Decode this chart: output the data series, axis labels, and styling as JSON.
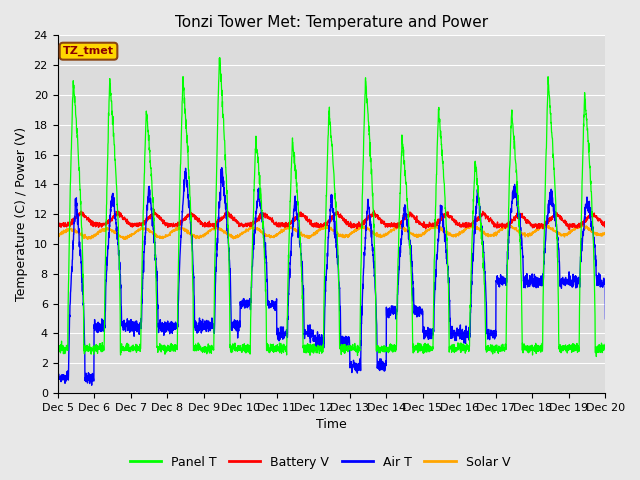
{
  "title": "Tonzi Tower Met: Temperature and Power",
  "xlabel": "Time",
  "ylabel": "Temperature (C) / Power (V)",
  "ylim": [
    0,
    24
  ],
  "xlim": [
    0,
    15
  ],
  "xtick_labels": [
    "Dec 5",
    "Dec 6",
    "Dec 7",
    "Dec 8",
    "Dec 9",
    "Dec 10",
    "Dec 11",
    "Dec 12",
    "Dec 13",
    "Dec 14",
    "Dec 15",
    "Dec 16",
    "Dec 17",
    "Dec 18",
    "Dec 19",
    "Dec 20"
  ],
  "xtick_positions": [
    0,
    1,
    2,
    3,
    4,
    5,
    6,
    7,
    8,
    9,
    10,
    11,
    12,
    13,
    14,
    15
  ],
  "ytick_positions": [
    0,
    2,
    4,
    6,
    8,
    10,
    12,
    14,
    16,
    18,
    20,
    22,
    24
  ],
  "colors": {
    "panel_t": "#00FF00",
    "battery_v": "#FF0000",
    "air_t": "#0000FF",
    "solar_v": "#FFA500"
  },
  "legend_entries": [
    "Panel T",
    "Battery V",
    "Air T",
    "Solar V"
  ],
  "watermark_text": "TZ_tmet",
  "watermark_color": "#8B0000",
  "watermark_bg": "#FFD700",
  "fig_bg": "#E8E8E8",
  "plot_bg": "#DCDCDC",
  "title_fontsize": 11,
  "axis_fontsize": 9,
  "tick_fontsize": 8,
  "legend_fontsize": 9,
  "num_points": 3000,
  "days": 15,
  "figwidth": 6.4,
  "figheight": 4.8,
  "dpi": 100
}
